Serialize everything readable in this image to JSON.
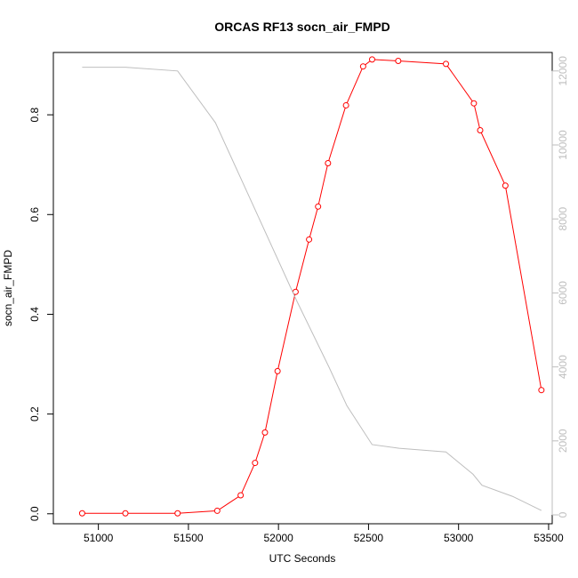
{
  "chart_data": {
    "type": "line",
    "title": "ORCAS RF13 socn_air_FMPD",
    "xlabel": "UTC Seconds",
    "ylabel": "socn_air_FMPD",
    "xlim": [
      50750,
      53520
    ],
    "ylim": [
      -0.02,
      0.925
    ],
    "y2lim": [
      -240,
      12500
    ],
    "x_ticks": [
      51000,
      51500,
      52000,
      52500,
      53000,
      53500
    ],
    "y_ticks": [
      0.0,
      0.2,
      0.4,
      0.6,
      0.8
    ],
    "y_tick_labels": [
      "0.0",
      "0.2",
      "0.4",
      "0.6",
      "0.8"
    ],
    "y2_ticks": [
      0,
      2000,
      4000,
      6000,
      8000,
      10000,
      12000
    ],
    "grid": false,
    "colors": {
      "primary": "#ff0000",
      "secondary": "#bebebe"
    },
    "series": [
      {
        "axis": "left",
        "style": "line+markers",
        "x": [
          50910,
          51150,
          51440,
          51660,
          51790,
          51870,
          51925,
          51995,
          52095,
          52170,
          52220,
          52275,
          52375,
          52470,
          52520,
          52665,
          52930,
          53085,
          53120,
          53260,
          53460
        ],
        "y": [
          0.001,
          0.001,
          0.001,
          0.006,
          0.037,
          0.102,
          0.163,
          0.286,
          0.445,
          0.55,
          0.616,
          0.703,
          0.819,
          0.897,
          0.911,
          0.908,
          0.902,
          0.823,
          0.769,
          0.658,
          0.248
        ]
      },
      {
        "axis": "right",
        "style": "line",
        "x": [
          50910,
          51150,
          51440,
          51650,
          51800,
          51950,
          52100,
          52280,
          52380,
          52520,
          52670,
          52930,
          53080,
          53130,
          53300,
          53460
        ],
        "y": [
          12100,
          12100,
          12000,
          10600,
          9000,
          7400,
          5800,
          4000,
          2950,
          1900,
          1800,
          1700,
          1100,
          800,
          500,
          120
        ]
      }
    ]
  }
}
